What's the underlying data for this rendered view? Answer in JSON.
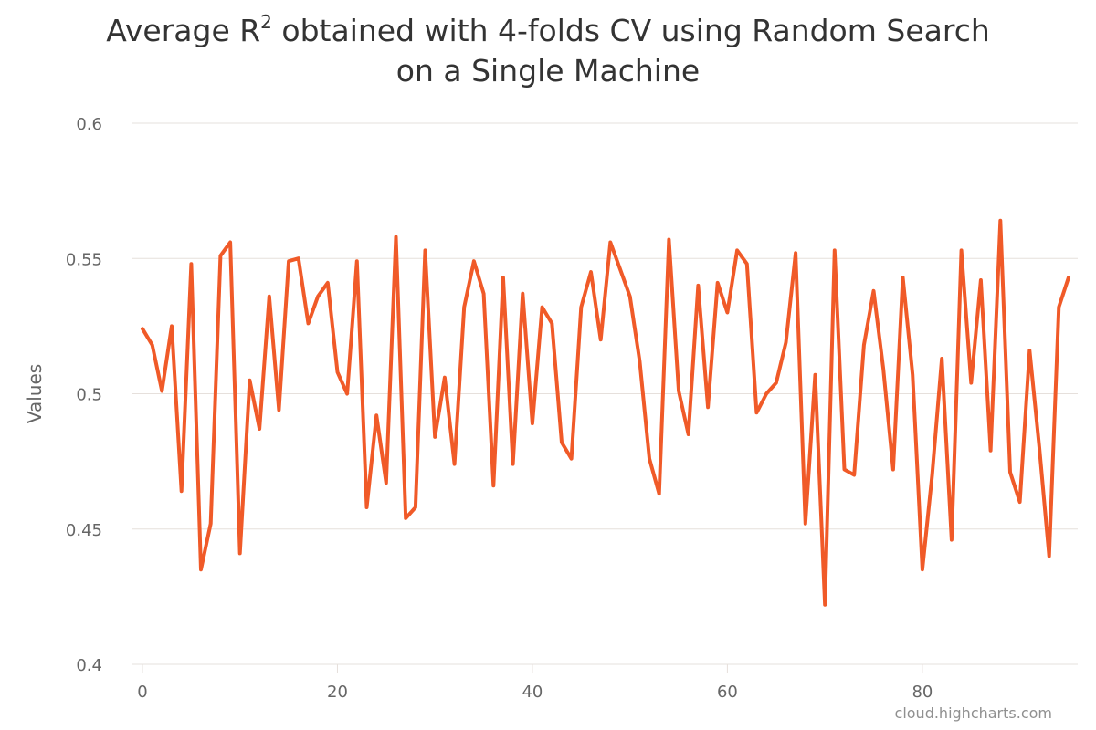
{
  "title": {
    "part1": "Average R",
    "sup": "2",
    "part2": " obtained with 4-folds CV using Random Search",
    "line2": "on a Single Machine"
  },
  "credits": "cloud.highcharts.com",
  "colors": {
    "series": "#f05a28",
    "grid": "#e6e0dc",
    "axis_text": "#666666",
    "title": "#333333"
  },
  "chart_data": {
    "type": "line",
    "ylabel": "Values",
    "xlabel": "",
    "ylim": [
      0.4,
      0.6
    ],
    "yticks": [
      "0.4",
      "0.45",
      "0.5",
      "0.55",
      "0.6"
    ],
    "xlim": [
      0,
      95
    ],
    "xticks": [
      "0",
      "20",
      "40",
      "60",
      "80"
    ],
    "grid": true,
    "legend": "none",
    "series": [
      {
        "values": [
          0.524,
          0.518,
          0.501,
          0.525,
          0.464,
          0.548,
          0.435,
          0.452,
          0.551,
          0.556,
          0.441,
          0.505,
          0.487,
          0.536,
          0.494,
          0.549,
          0.55,
          0.526,
          0.536,
          0.541,
          0.508,
          0.5,
          0.549,
          0.458,
          0.492,
          0.467,
          0.558,
          0.454,
          0.458,
          0.553,
          0.484,
          0.506,
          0.474,
          0.532,
          0.549,
          0.537,
          0.466,
          0.543,
          0.474,
          0.537,
          0.489,
          0.532,
          0.526,
          0.482,
          0.476,
          0.532,
          0.545,
          0.52,
          0.556,
          0.546,
          0.536,
          0.512,
          0.476,
          0.463,
          0.557,
          0.501,
          0.485,
          0.54,
          0.495,
          0.541,
          0.53,
          0.553,
          0.548,
          0.493,
          0.5,
          0.504,
          0.519,
          0.552,
          0.452,
          0.507,
          0.422,
          0.553,
          0.472,
          0.47,
          0.518,
          0.538,
          0.509,
          0.472,
          0.543,
          0.507,
          0.435,
          0.47,
          0.513,
          0.446,
          0.553,
          0.504,
          0.542,
          0.479,
          0.564,
          0.471,
          0.46,
          0.516,
          0.48,
          0.44,
          0.532,
          0.543
        ]
      }
    ]
  }
}
